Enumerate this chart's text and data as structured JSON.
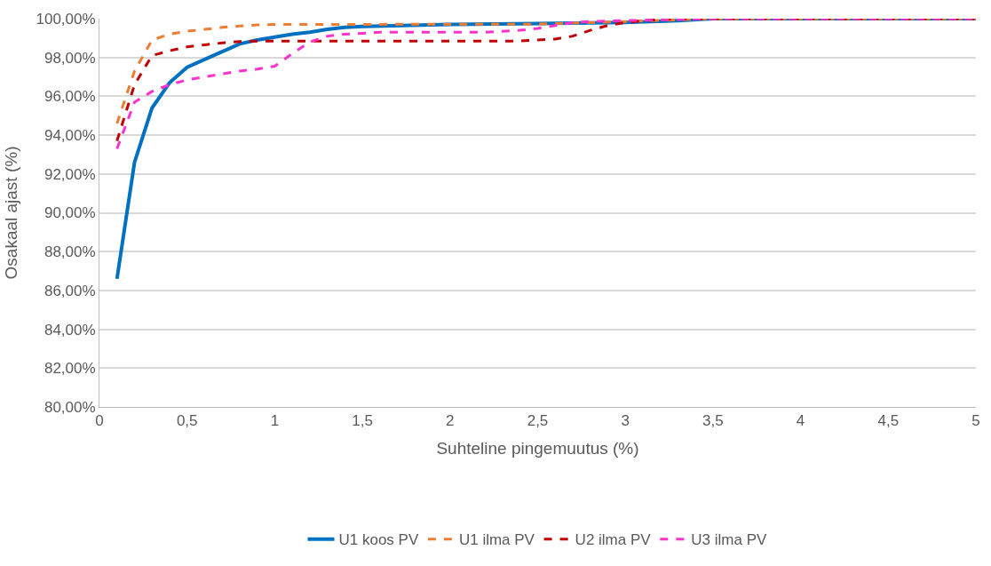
{
  "chart_data": {
    "type": "line",
    "xlabel": "Suhteline pingemuutus (%)",
    "ylabel": "Osakaal ajast (%)",
    "xlim": [
      0,
      5
    ],
    "ylim": [
      80,
      100
    ],
    "xticks": [
      0,
      {
        "value": 0.5,
        "label": "0,5"
      },
      1,
      {
        "value": 1.5,
        "label": "1,5"
      },
      2,
      {
        "value": 2.5,
        "label": "2,5"
      },
      3,
      {
        "value": 3.5,
        "label": "3,5"
      },
      4,
      {
        "value": 4.5,
        "label": "4,5"
      },
      5
    ],
    "yticks": [
      {
        "value": 80,
        "label": "80,00%"
      },
      {
        "value": 82,
        "label": "82,00%"
      },
      {
        "value": 84,
        "label": "84,00%"
      },
      {
        "value": 86,
        "label": "86,00%"
      },
      {
        "value": 88,
        "label": "88,00%"
      },
      {
        "value": 90,
        "label": "90,00%"
      },
      {
        "value": 92,
        "label": "92,00%"
      },
      {
        "value": 94,
        "label": "94,00%"
      },
      {
        "value": 96,
        "label": "96,00%"
      },
      {
        "value": 98,
        "label": "98,00%"
      },
      {
        "value": 100,
        "label": "100,00%"
      }
    ],
    "grid": "y",
    "legend": "bottom",
    "series": [
      {
        "name": "U1 koos PV",
        "color": "#0070c0",
        "line_style": "solid",
        "x": [
          0.1,
          0.2,
          0.3,
          0.4,
          0.5,
          0.6,
          0.7,
          0.8,
          0.9,
          1.0,
          1.1,
          1.2,
          1.3,
          1.4,
          1.5,
          2.0,
          2.5,
          3.0,
          3.3,
          3.5,
          5.0
        ],
        "values": [
          86.6,
          92.6,
          95.4,
          96.7,
          97.5,
          97.9,
          98.3,
          98.7,
          98.9,
          99.05,
          99.2,
          99.3,
          99.45,
          99.55,
          99.6,
          99.7,
          99.75,
          99.8,
          99.9,
          100,
          100
        ]
      },
      {
        "name": "U1 ilma PV",
        "color": "#ed7d31",
        "line_style": "dashed",
        "x": [
          0.1,
          0.2,
          0.3,
          0.4,
          0.5,
          0.6,
          0.7,
          0.8,
          0.9,
          1.0,
          2.5,
          3.0,
          3.5,
          5.0
        ],
        "values": [
          94.6,
          97.3,
          98.9,
          99.2,
          99.35,
          99.45,
          99.55,
          99.62,
          99.68,
          99.7,
          99.72,
          99.85,
          100,
          100
        ]
      },
      {
        "name": "U2 ilma PV",
        "color": "#c00000",
        "line_style": "dashed",
        "x": [
          0.1,
          0.2,
          0.3,
          0.4,
          0.5,
          0.6,
          0.7,
          0.8,
          0.9,
          2.4,
          2.5,
          2.6,
          2.7,
          2.8,
          2.9,
          3.0,
          3.1,
          3.2,
          3.3,
          5.0
        ],
        "values": [
          93.7,
          96.6,
          98.1,
          98.35,
          98.55,
          98.65,
          98.75,
          98.82,
          98.85,
          98.85,
          98.9,
          98.95,
          99.1,
          99.4,
          99.65,
          99.8,
          99.9,
          99.95,
          100,
          100
        ]
      },
      {
        "name": "U3 ilma PV",
        "color": "#ff33cc",
        "line_style": "dashed",
        "x": [
          0.1,
          0.2,
          0.3,
          0.4,
          0.5,
          0.6,
          0.7,
          0.8,
          0.9,
          1.0,
          1.1,
          1.2,
          1.3,
          1.4,
          1.5,
          1.6,
          2.2,
          2.3,
          2.4,
          2.5,
          2.6,
          2.7,
          2.8,
          3.0,
          3.5,
          5.0
        ],
        "values": [
          93.3,
          95.7,
          96.25,
          96.6,
          96.85,
          97.0,
          97.15,
          97.3,
          97.4,
          97.55,
          98.2,
          98.8,
          99.1,
          99.2,
          99.25,
          99.3,
          99.3,
          99.35,
          99.4,
          99.5,
          99.65,
          99.8,
          99.85,
          99.9,
          100,
          100
        ]
      }
    ]
  }
}
